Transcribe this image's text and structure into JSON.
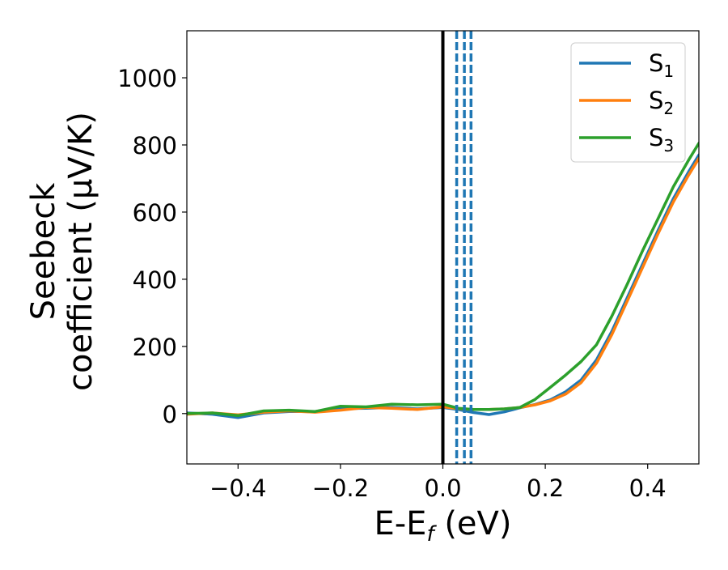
{
  "chart_data": {
    "type": "line",
    "xlabel": "E-E",
    "xlabel_sub": "f",
    "xlabel_unit": " (eV)",
    "ylabel_line1": "Seebeck",
    "ylabel_line2": "coefficient  (μV/K)",
    "xlim": [
      -0.5,
      0.5
    ],
    "ylim": [
      -150,
      1140
    ],
    "xticks": [
      -0.4,
      -0.2,
      0.0,
      0.2,
      0.4
    ],
    "xtick_labels": [
      "−0.4",
      "−0.2",
      "0.0",
      "0.2",
      "0.4"
    ],
    "yticks": [
      0,
      200,
      400,
      600,
      800,
      1000
    ],
    "ytick_labels": [
      "0",
      "200",
      "400",
      "600",
      "800",
      "1000"
    ],
    "grid": false,
    "legend_position": "top-right",
    "vertical_lines": [
      {
        "x": 0.0,
        "style": "solid",
        "color": "#000000"
      },
      {
        "x": 0.027,
        "style": "dashed",
        "color": "#1f77b4"
      },
      {
        "x": 0.042,
        "style": "dashed",
        "color": "#1f77b4"
      },
      {
        "x": 0.055,
        "style": "dashed",
        "color": "#1f77b4"
      }
    ],
    "series": [
      {
        "name": "S",
        "sub": "1",
        "color": "#1f77b4",
        "x": [
          -0.5,
          -0.45,
          -0.4,
          -0.35,
          -0.3,
          -0.25,
          -0.2,
          -0.15,
          -0.1,
          -0.05,
          0.0,
          0.03,
          0.06,
          0.09,
          0.12,
          0.15,
          0.18,
          0.21,
          0.24,
          0.27,
          0.3,
          0.33,
          0.36,
          0.39,
          0.42,
          0.45,
          0.48,
          0.5
        ],
        "y": [
          2,
          -2,
          -12,
          2,
          6,
          6,
          15,
          16,
          18,
          14,
          18,
          12,
          3,
          -3,
          5,
          17,
          27,
          41,
          65,
          100,
          160,
          245,
          345,
          445,
          545,
          640,
          720,
          770
        ]
      },
      {
        "name": "S",
        "sub": "2",
        "color": "#ff7f0e",
        "x": [
          -0.5,
          -0.45,
          -0.4,
          -0.35,
          -0.3,
          -0.25,
          -0.2,
          -0.15,
          -0.1,
          -0.05,
          0.0,
          0.03,
          0.06,
          0.09,
          0.12,
          0.15,
          0.18,
          0.21,
          0.24,
          0.27,
          0.3,
          0.33,
          0.36,
          0.39,
          0.42,
          0.45,
          0.48,
          0.5
        ],
        "y": [
          -2,
          2,
          -4,
          4,
          8,
          4,
          10,
          18,
          16,
          12,
          20,
          15,
          12,
          12,
          14,
          18,
          26,
          38,
          58,
          92,
          150,
          235,
          335,
          435,
          535,
          630,
          710,
          760
        ]
      },
      {
        "name": "S",
        "sub": "3",
        "color": "#2ca02c",
        "x": [
          -0.5,
          -0.45,
          -0.4,
          -0.35,
          -0.3,
          -0.25,
          -0.2,
          -0.15,
          -0.1,
          -0.05,
          0.0,
          0.03,
          0.06,
          0.09,
          0.12,
          0.15,
          0.18,
          0.21,
          0.24,
          0.27,
          0.3,
          0.33,
          0.36,
          0.39,
          0.42,
          0.45,
          0.48,
          0.5
        ],
        "y": [
          0,
          2,
          -6,
          8,
          10,
          6,
          22,
          20,
          28,
          26,
          28,
          16,
          12,
          12,
          14,
          18,
          42,
          78,
          115,
          155,
          205,
          290,
          385,
          485,
          580,
          675,
          755,
          805
        ]
      }
    ]
  }
}
